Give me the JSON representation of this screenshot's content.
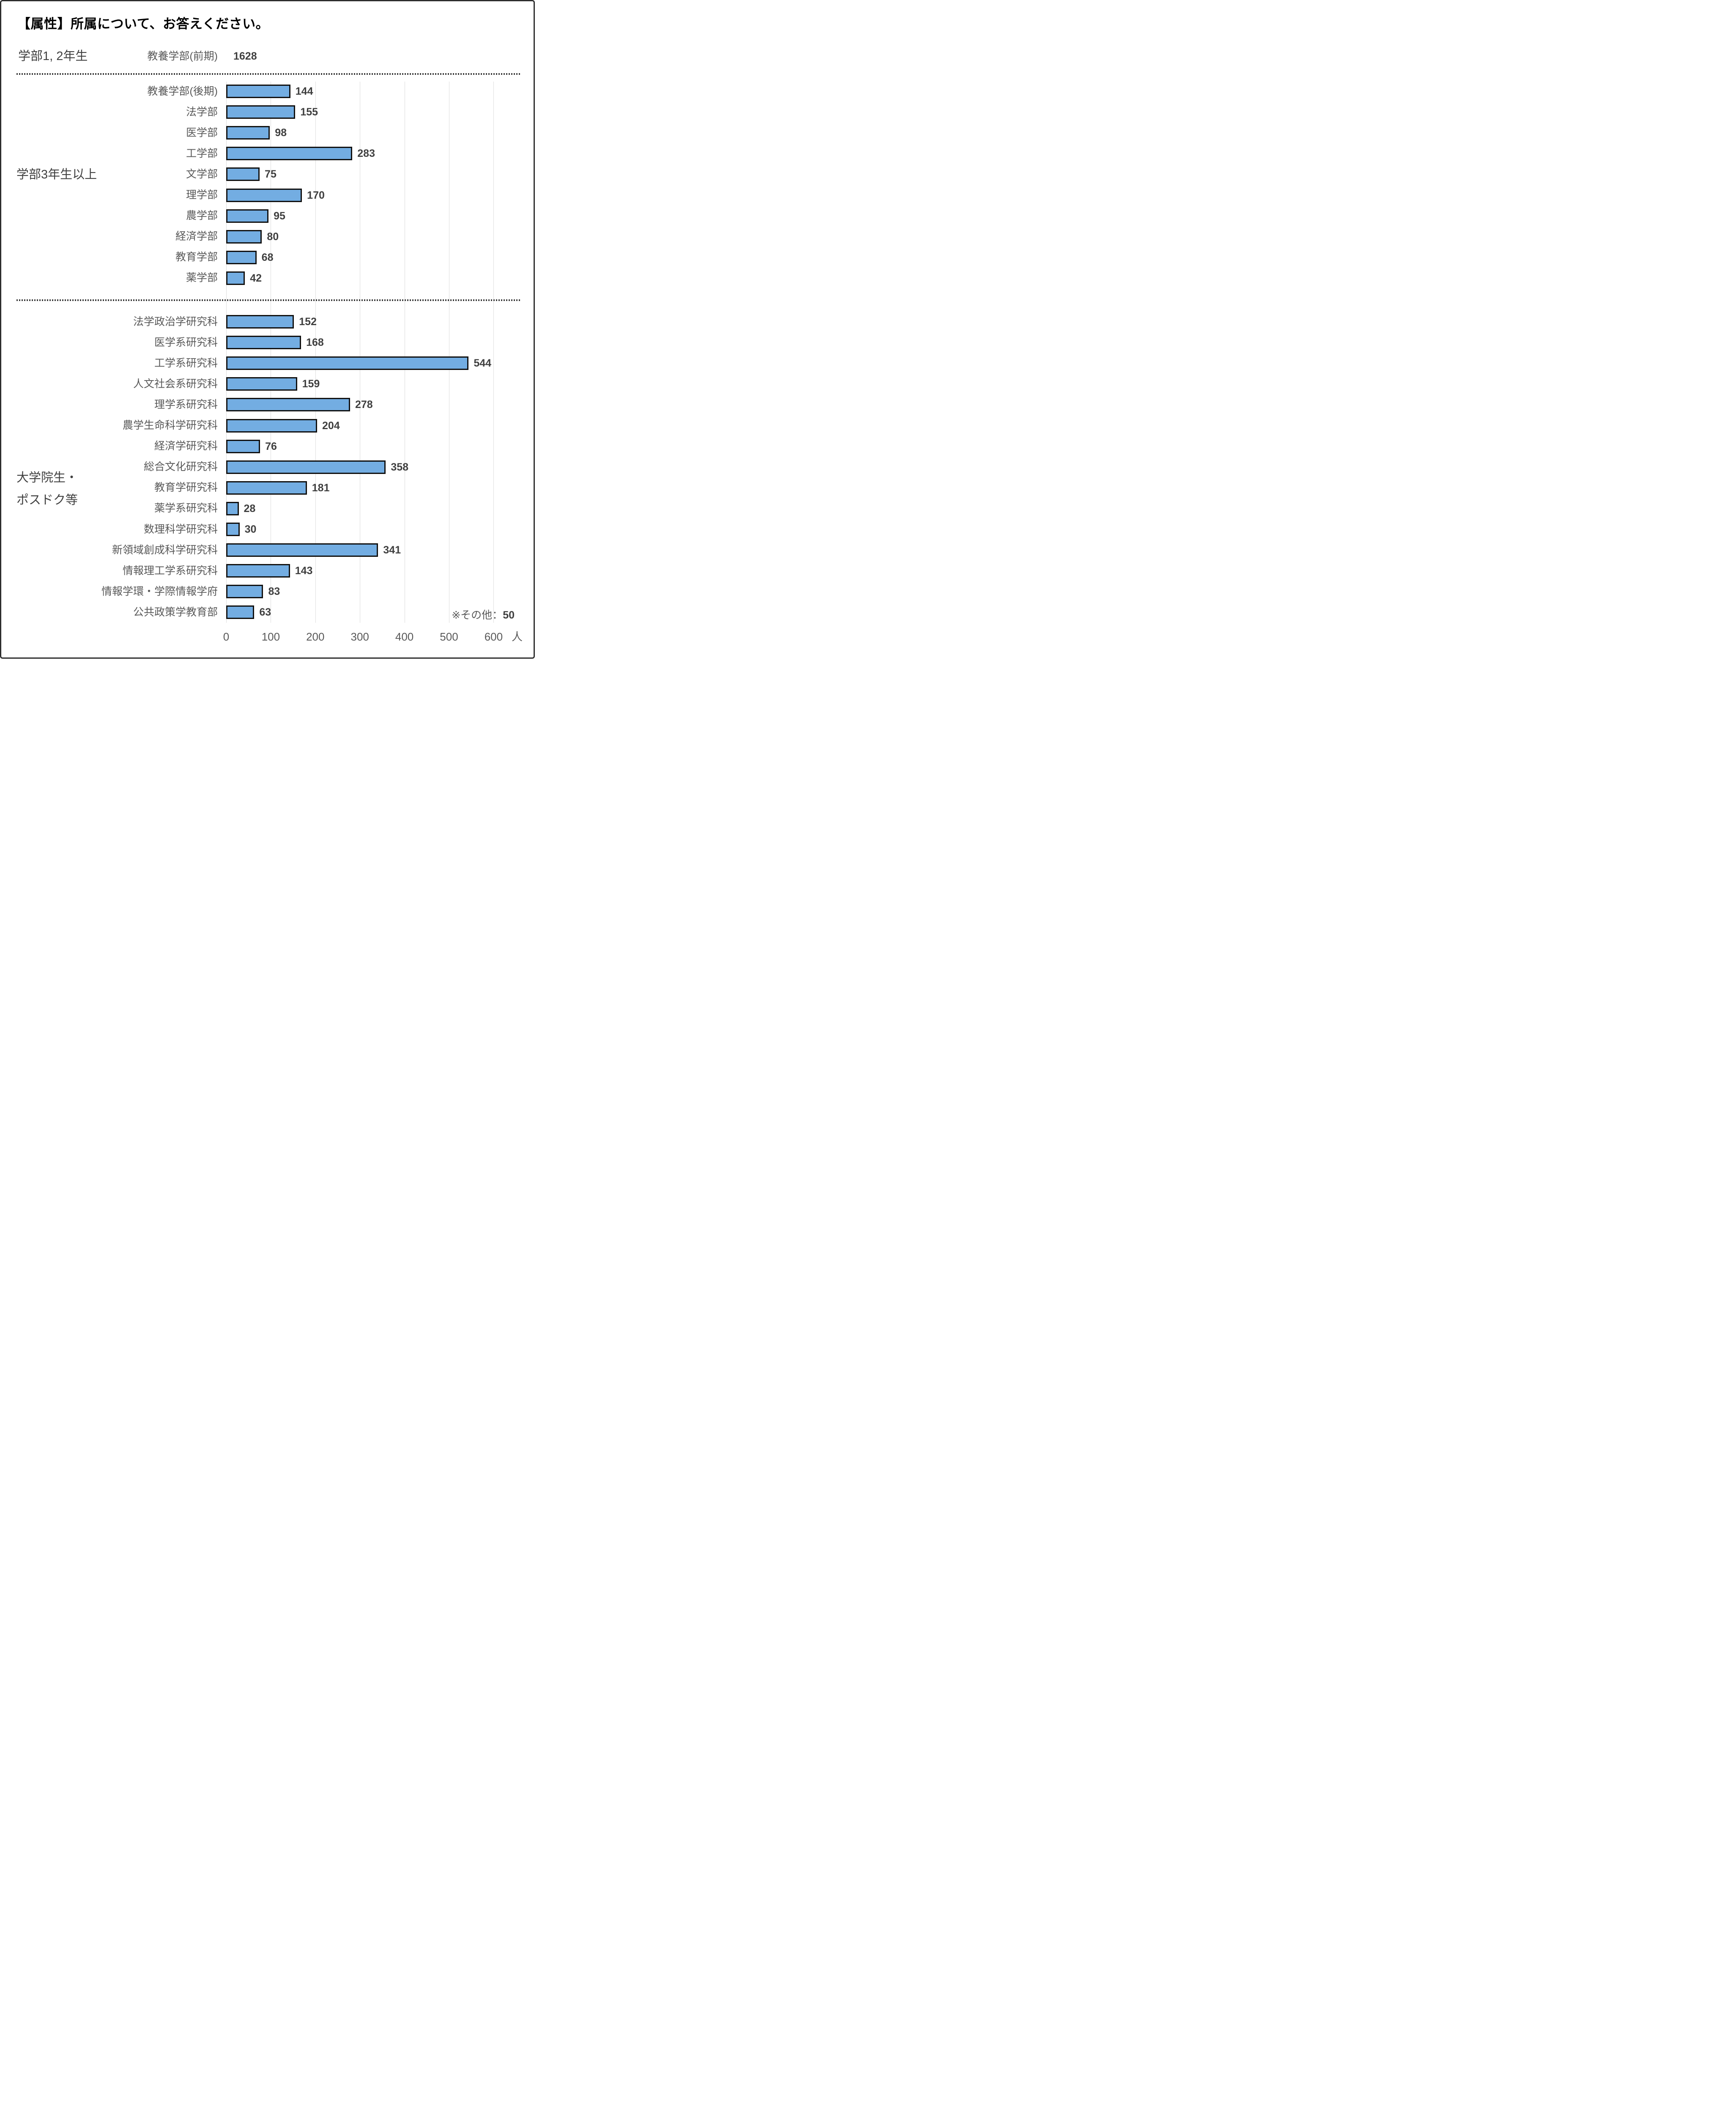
{
  "chart_data": {
    "type": "bar",
    "title": "【属性】所属について、お答えください。",
    "unit_label": "人",
    "xlim": [
      0,
      600
    ],
    "x_ticks": [
      "0",
      "100",
      "200",
      "300",
      "400",
      "500",
      "600"
    ],
    "grid": true,
    "orientation": "horizontal",
    "bar_color": "#73ADE2",
    "bar_border_color": "#111111",
    "note_prefix": "※その他：",
    "note_value": "50",
    "groups": [
      {
        "label": "学部1, 2年生",
        "label_lines": [
          "学部1, 2年生"
        ],
        "items": [
          {
            "category": "教養学部(前期)",
            "value": 1628,
            "show_bar": false
          }
        ]
      },
      {
        "label": "学部3年生以上",
        "label_lines": [
          "学部3年生以上"
        ],
        "items": [
          {
            "category": "教養学部(後期)",
            "value": 144,
            "show_bar": true
          },
          {
            "category": "法学部",
            "value": 155,
            "show_bar": true
          },
          {
            "category": "医学部",
            "value": 98,
            "show_bar": true
          },
          {
            "category": "工学部",
            "value": 283,
            "show_bar": true
          },
          {
            "category": "文学部",
            "value": 75,
            "show_bar": true
          },
          {
            "category": "理学部",
            "value": 170,
            "show_bar": true
          },
          {
            "category": "農学部",
            "value": 95,
            "show_bar": true
          },
          {
            "category": "経済学部",
            "value": 80,
            "show_bar": true
          },
          {
            "category": "教育学部",
            "value": 68,
            "show_bar": true
          },
          {
            "category": "薬学部",
            "value": 42,
            "show_bar": true
          }
        ]
      },
      {
        "label": "大学院生・ポスドク等",
        "label_lines": [
          "大学院生・",
          "ポスドク等"
        ],
        "items": [
          {
            "category": "法学政治学研究科",
            "value": 152,
            "show_bar": true
          },
          {
            "category": "医学系研究科",
            "value": 168,
            "show_bar": true
          },
          {
            "category": "工学系研究科",
            "value": 544,
            "show_bar": true
          },
          {
            "category": "人文社会系研究科",
            "value": 159,
            "show_bar": true
          },
          {
            "category": "理学系研究科",
            "value": 278,
            "show_bar": true
          },
          {
            "category": "農学生命科学研究科",
            "value": 204,
            "show_bar": true
          },
          {
            "category": "経済学研究科",
            "value": 76,
            "show_bar": true
          },
          {
            "category": "総合文化研究科",
            "value": 358,
            "show_bar": true
          },
          {
            "category": "教育学研究科",
            "value": 181,
            "show_bar": true
          },
          {
            "category": "薬学系研究科",
            "value": 28,
            "show_bar": true
          },
          {
            "category": "数理科学研究科",
            "value": 30,
            "show_bar": true
          },
          {
            "category": "新領域創成科学研究科",
            "value": 341,
            "show_bar": true
          },
          {
            "category": "情報理工学系研究科",
            "value": 143,
            "show_bar": true
          },
          {
            "category": "情報学環・学際情報学府",
            "value": 83,
            "show_bar": true
          },
          {
            "category": "公共政策学教育部",
            "value": 63,
            "show_bar": true
          }
        ]
      }
    ]
  }
}
